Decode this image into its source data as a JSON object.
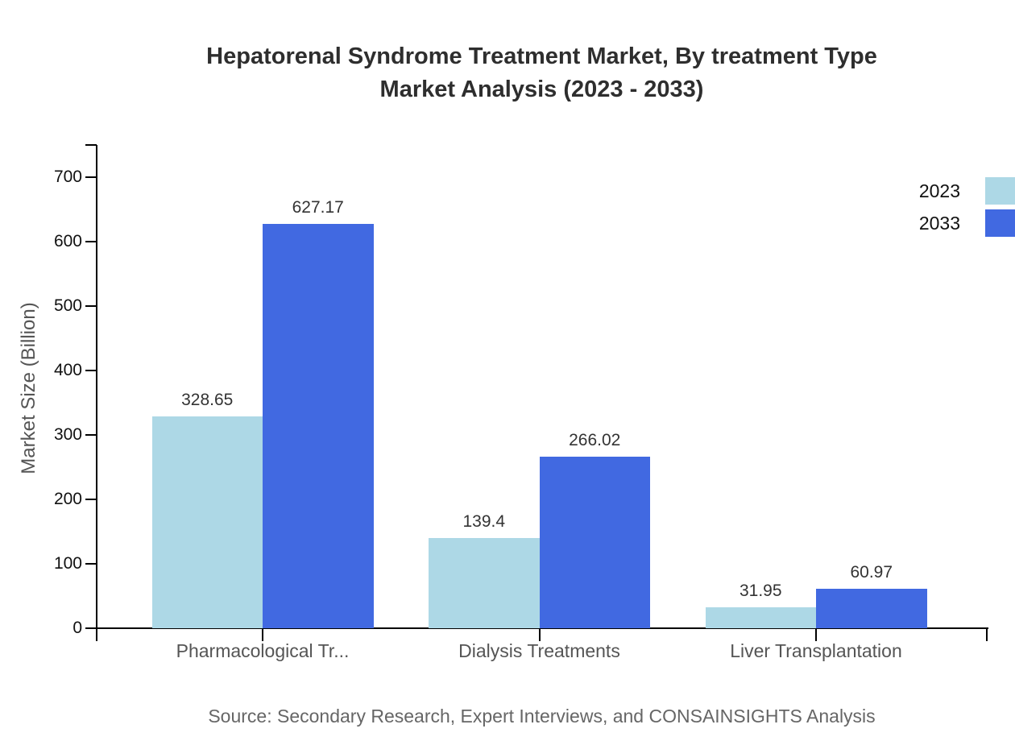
{
  "title": {
    "line1": "Hepatorenal Syndrome Treatment Market, By treatment Type",
    "line2": "Market Analysis (2023 - 2033)"
  },
  "source": "Source: Secondary Research, Expert Interviews, and CONSAINSIGHTS Analysis",
  "colors": {
    "series_2023": "#ADD8E6",
    "series_2033": "#4169E1",
    "axis": "#000000",
    "title_text": "#2e2e2e",
    "tick_label_text": "#111111",
    "value_label_text": "#333333",
    "category_label_text": "#555555",
    "source_text": "#666666"
  },
  "chart_data": {
    "type": "bar",
    "title": "Hepatorenal Syndrome Treatment Market, By treatment Type Market Analysis (2023 - 2033)",
    "categories": [
      "Pharmacological Tr...",
      "Dialysis Treatments",
      "Liver Transplantation"
    ],
    "series": [
      {
        "name": "2023",
        "color": "#ADD8E6",
        "values": [
          328.65,
          139.4,
          31.95
        ]
      },
      {
        "name": "2033",
        "color": "#4169E1",
        "values": [
          627.17,
          266.02,
          60.97
        ]
      }
    ],
    "value_labels_shown": true,
    "xlabel": "",
    "ylabel": "Market Size (Billion)",
    "yticks": [
      0,
      100,
      200,
      300,
      400,
      500,
      600,
      700
    ],
    "ylim": [
      0,
      750
    ],
    "grid": false,
    "legend": {
      "position": "top-right",
      "entries": [
        "2023",
        "2033"
      ]
    }
  }
}
